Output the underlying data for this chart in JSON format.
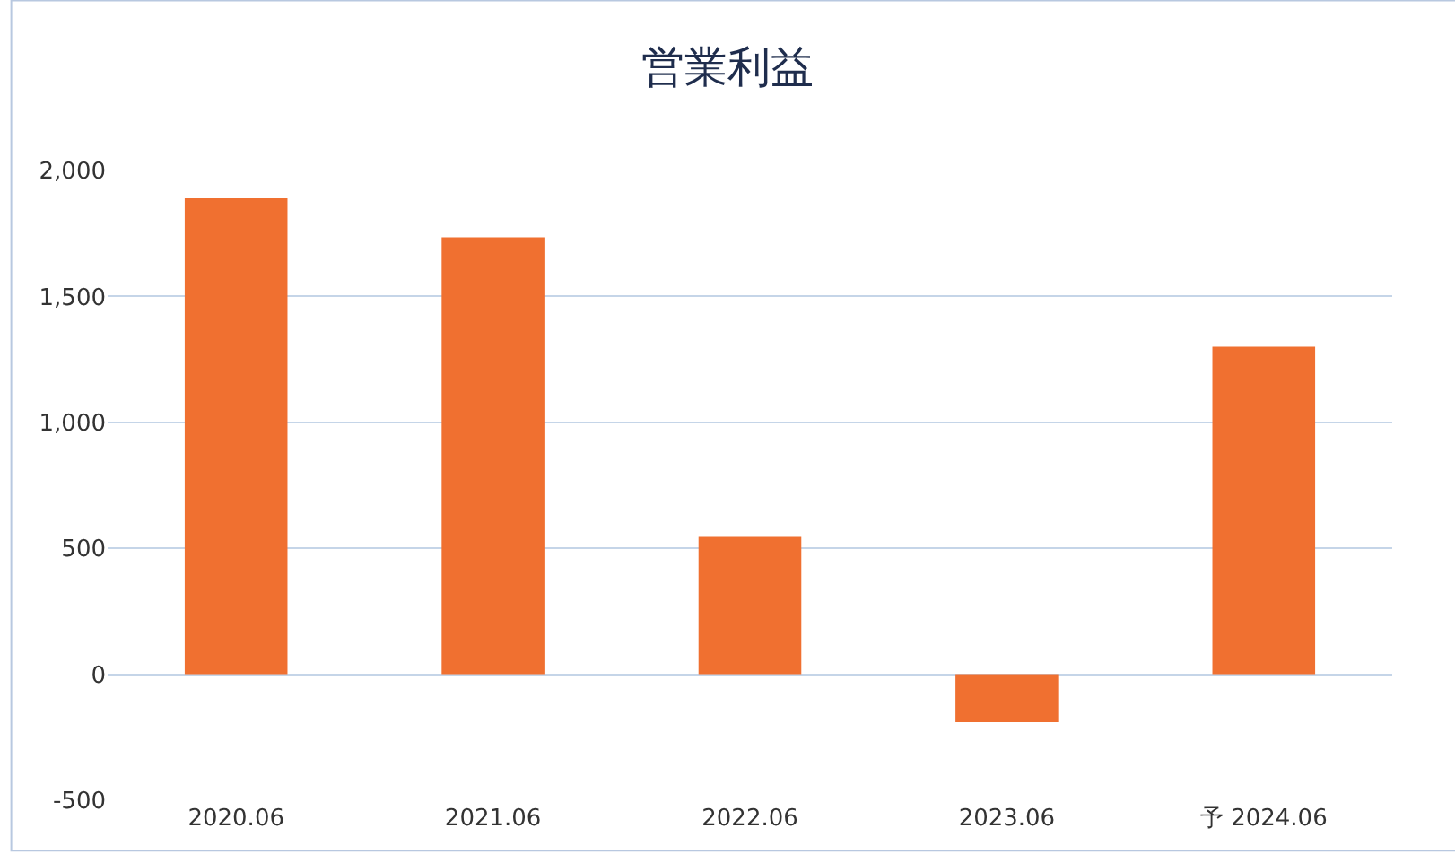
{
  "chart_data": {
    "type": "bar",
    "title": "営業利益",
    "categories": [
      "2020.06",
      "2021.06",
      "2022.06",
      "2023.06",
      "予 2024.06"
    ],
    "values": [
      1890,
      1735,
      545,
      -190,
      1300
    ],
    "color": "#f07030",
    "ylim": [
      -500,
      2000
    ],
    "yticks": [
      {
        "value": 2000,
        "label": "2,000"
      },
      {
        "value": 1500,
        "label": "1,500"
      },
      {
        "value": 1000,
        "label": "1,000"
      },
      500,
      0,
      -500
    ],
    "grid": "y",
    "legend": false
  }
}
